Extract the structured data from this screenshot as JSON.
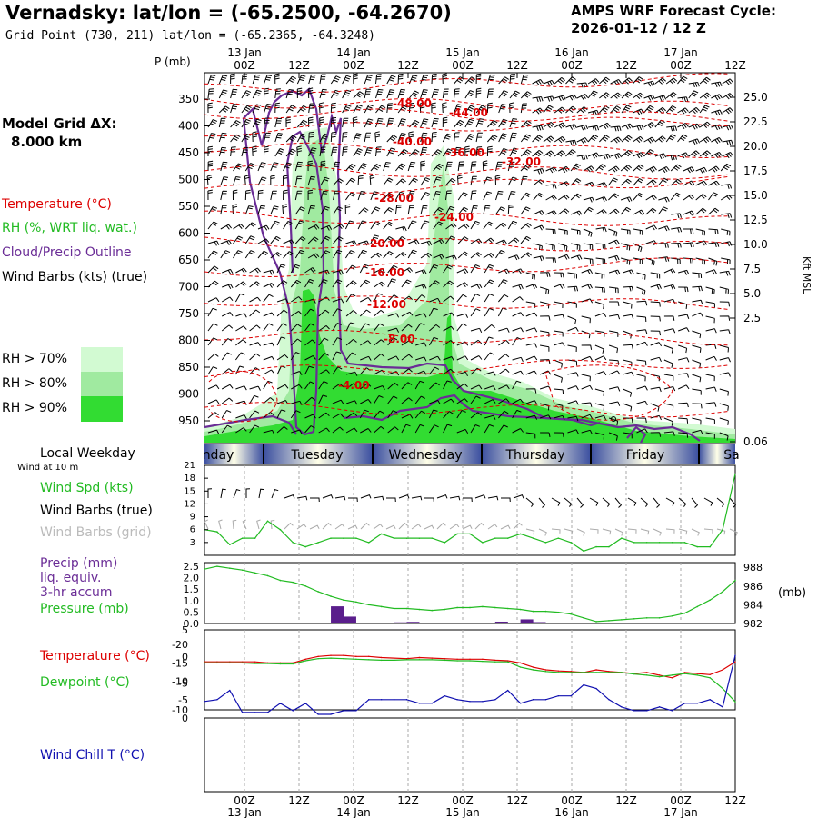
{
  "header": {
    "title": "Vernadsky:  lat/lon = (-65.2500, -64.2670)",
    "subtitle": "Grid Point (730, 211) lat/lon = (-65.2365, -64.3248)",
    "cycle_line1": "AMPS WRF Forecast Cycle:",
    "cycle_line2": "2026-01-12 / 12  Z"
  },
  "side": {
    "grid_label": "Model Grid ΔX:",
    "grid_value": "8.000 km",
    "temperature": "Temperature (°C)",
    "rh": "RH (%, WRT liq. wat.)",
    "cloud": "Cloud/Precip Outline",
    "wind_barbs": "Wind Barbs (kts) (true)",
    "rh70": "RH > 70%",
    "rh80": "RH > 80%",
    "rh90": "RH > 90%",
    "local_weekday": "Local Weekday",
    "wind10m": "Wind at 10 m",
    "wind_spd": "Wind Spd (kts)",
    "barbs_true": "Wind Barbs (true)",
    "barbs_grid": "Wind Barbs (grid)",
    "precip1": "Precip (mm)",
    "precip2": "liq. equiv.",
    "precip3": "3-hr accum",
    "pressure": "Pressure (mb)",
    "temp2": "Temperature (°C)",
    "dew": "Dewpoint (°C)",
    "wind_chill": "Wind Chill T (°C)"
  },
  "colors": {
    "rh70": "#d2fad2",
    "rh80": "#a0eaa0",
    "rh90": "#32dc32",
    "temp": "#dd0000",
    "cloud": "#6a2c96",
    "dew": "#22bb22",
    "chill": "#1010b0",
    "precip": "#5a1e8c"
  },
  "chart_data": [
    {
      "type": "heatmap",
      "name": "cross-section",
      "yaxis_left_label": "P (mb)",
      "yaxis_left_ticks": [
        "350",
        "400",
        "450",
        "500",
        "550",
        "600",
        "650",
        "700",
        "750",
        "800",
        "850",
        "900",
        "950"
      ],
      "yaxis_right_label": "Kft MSL",
      "yaxis_right_ticks": [
        "25.0",
        "22.5",
        "20.0",
        "17.5",
        "15.0",
        "12.5",
        "10.0",
        "7.5",
        "5.0",
        "2.5",
        "0.06"
      ],
      "x_top_times": [
        "00Z",
        "12Z",
        "00Z",
        "12Z",
        "00Z",
        "12Z",
        "00Z",
        "12Z",
        "00Z",
        "12Z"
      ],
      "x_top_dates": [
        "13 Jan",
        "14 Jan",
        "15 Jan",
        "16 Jan",
        "17 Jan"
      ],
      "isotherm_labels": [
        "-48.00",
        "-44.00",
        "-40.00",
        "-36.00",
        "-32.00",
        "-28.00",
        "-24.00",
        "-20.00",
        "-16.00",
        "-12.00",
        "-8.00",
        "-4.00"
      ]
    },
    {
      "type": "table",
      "name": "local-weekday",
      "days": [
        "nday",
        "Tuesday",
        "Wednesday",
        "Thursday",
        "Friday",
        "Sa"
      ]
    },
    {
      "type": "line",
      "name": "wind-speed",
      "ylabel": "Wind Spd (kts)",
      "y_ticks": [
        "21",
        "18",
        "15",
        "12",
        "9",
        "6",
        "3"
      ],
      "ylim": [
        0,
        21
      ],
      "values": [
        6,
        5.5,
        2.5,
        4,
        4,
        8,
        6,
        3,
        2,
        3,
        4,
        4,
        4,
        3,
        5,
        4,
        4,
        4,
        4,
        3,
        5,
        5,
        3,
        4,
        4,
        5,
        4,
        3,
        4,
        3,
        1,
        2,
        2,
        4,
        3,
        3,
        3,
        3,
        3,
        2,
        2,
        6,
        19
      ]
    },
    {
      "type": "bar",
      "name": "precip-pressure",
      "ylabel_left": "Precip (mm)",
      "ylabel_right": "(mb)",
      "y_ticks_left": [
        "2.5",
        "2.0",
        "1.5",
        "1.0",
        "0.5",
        "0.0"
      ],
      "y_ticks_right": [
        "988",
        "986",
        "984",
        "982"
      ],
      "precip_values": [
        0,
        0,
        0,
        0,
        0,
        0,
        0,
        0,
        0,
        0,
        0.75,
        0.3,
        0,
        0,
        0.03,
        0.05,
        0.07,
        0,
        0,
        0,
        0,
        0.03,
        0.03,
        0.08,
        0.04,
        0.18,
        0.06,
        0.03,
        0,
        0,
        0,
        0,
        0,
        0,
        0,
        0,
        0,
        0,
        0,
        0,
        0,
        0,
        0
      ],
      "pressure_values": [
        987.8,
        988.1,
        987.9,
        987.7,
        987.4,
        987.1,
        986.6,
        986.4,
        986.0,
        985.4,
        984.9,
        984.5,
        984.3,
        984.0,
        983.8,
        983.6,
        983.6,
        983.5,
        983.4,
        983.5,
        983.7,
        983.7,
        983.8,
        983.7,
        983.6,
        983.5,
        983.3,
        983.3,
        983.2,
        983.0,
        982.6,
        982.2,
        982.3,
        982.4,
        982.5,
        982.6,
        982.6,
        982.8,
        983.1,
        983.8,
        984.5,
        985.4,
        986.6
      ]
    },
    {
      "type": "line",
      "name": "temp-dewpoint",
      "y_ticks": [
        "5",
        "0",
        "-5",
        "-10"
      ],
      "ylim": [
        -10,
        5
      ],
      "series": [
        {
          "name": "Temperature",
          "values": [
            -1.0,
            -1.0,
            -1.0,
            -1.0,
            -1.0,
            -1.2,
            -1.2,
            -1.2,
            -0.5,
            0,
            0.2,
            0.2,
            0,
            0,
            -0.2,
            -0.3,
            -0.4,
            -0.2,
            -0.3,
            -0.4,
            -0.5,
            -0.5,
            -0.5,
            -0.7,
            -0.8,
            -1.2,
            -2.0,
            -2.5,
            -2.7,
            -2.8,
            -3.0,
            -2.5,
            -2.8,
            -3.0,
            -3.2,
            -3.0,
            -3.5,
            -4.0,
            -3.0,
            -3.2,
            -3.4,
            -2.5,
            -1.0
          ]
        },
        {
          "name": "Dewpoint",
          "values": [
            -1.2,
            -1.2,
            -1.2,
            -1.2,
            -1.3,
            -1.3,
            -1.4,
            -1.4,
            -0.8,
            -0.4,
            -0.3,
            -0.4,
            -0.5,
            -0.6,
            -0.7,
            -0.7,
            -0.6,
            -0.6,
            -0.6,
            -0.7,
            -0.8,
            -0.8,
            -0.9,
            -1.0,
            -1.0,
            -2.0,
            -2.5,
            -2.8,
            -3.0,
            -3.0,
            -3.0,
            -3.0,
            -3.0,
            -3.0,
            -3.3,
            -3.5,
            -3.8,
            -3.5,
            -3.2,
            -3.5,
            -4.0,
            -6.0,
            -8.5
          ]
        }
      ]
    },
    {
      "type": "line",
      "name": "wind-chill",
      "ylabel": "Wind Chill T (°C)",
      "y_ticks": [
        "0",
        "-5",
        "-10",
        "-15",
        "-20"
      ],
      "ylim": [
        -20,
        0
      ],
      "values": [
        -4.5,
        -5,
        -7.5,
        -1.5,
        -1.5,
        -1.5,
        -4,
        -2,
        -4,
        -1,
        -1,
        -2,
        -2,
        -5,
        -5,
        -5,
        -5,
        -4,
        -4,
        -6,
        -5,
        -4.5,
        -4.5,
        -5,
        -7.5,
        -4,
        -5,
        -5,
        -6,
        -6,
        -9,
        -8,
        -5,
        -3,
        -2,
        -2,
        -3,
        -2,
        -4,
        -4,
        -5,
        -3,
        -17
      ]
    },
    {
      "type": "table",
      "name": "bottom-axis",
      "x_times": [
        "00Z",
        "12Z",
        "00Z",
        "12Z",
        "00Z",
        "12Z",
        "00Z",
        "12Z",
        "00Z",
        "12Z"
      ],
      "x_dates": [
        "13 Jan",
        "14 Jan",
        "15 Jan",
        "16 Jan",
        "17 Jan"
      ]
    }
  ]
}
